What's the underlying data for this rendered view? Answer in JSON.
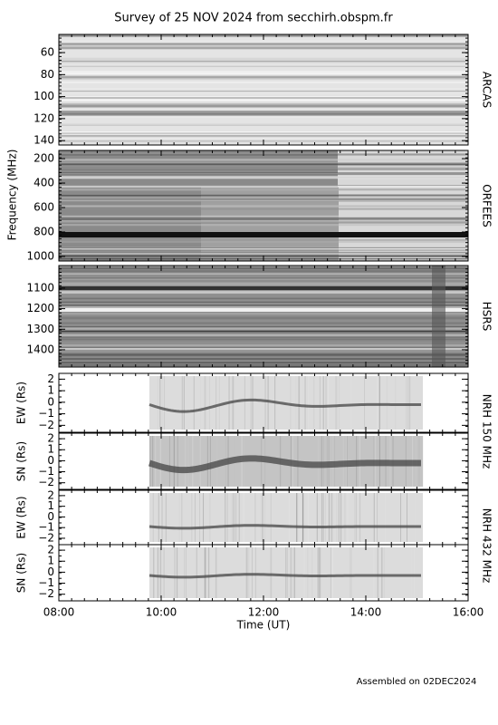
{
  "title": "Survey of 25 NOV 2024 from secchirh.obspm.fr",
  "footer": "Assembled on 02DEC2024",
  "chart_data": [
    {
      "type": "spectrogram",
      "right_label": "ARCAS",
      "ylim": [
        144,
        43.5
      ],
      "yticks": [
        60,
        80,
        100,
        120,
        140
      ]
    },
    {
      "type": "spectrogram",
      "right_label": "ORFEES",
      "ylabel": "Frequency (MHz)",
      "ylim": [
        1037,
        133
      ],
      "yticks": [
        200,
        400,
        600,
        800,
        1000
      ]
    },
    {
      "type": "spectrogram",
      "right_label": "HSRS",
      "ylim": [
        1484,
        990
      ],
      "yticks": [
        1100,
        1200,
        1300,
        1400
      ]
    },
    {
      "type": "heliograph",
      "right_label": "NRH 150 MHz",
      "ylabel": "EW (Rs)",
      "ylim": [
        -2.6,
        2.5
      ],
      "yticks": [
        {
          "value": -2,
          "label": "−2"
        },
        {
          "value": -1,
          "label": "−1"
        },
        0,
        1,
        2
      ]
    },
    {
      "type": "heliograph",
      "ylabel": "SN (Rs)",
      "ylim": [
        -2.6,
        2.5
      ],
      "yticks": [
        {
          "value": -2,
          "label": "−2"
        },
        {
          "value": -1,
          "label": "−1"
        },
        0,
        1,
        2
      ]
    },
    {
      "type": "heliograph",
      "right_label": "NRH 432 MHz",
      "ylabel": "EW (Rs)",
      "ylim": [
        -2.6,
        2.5
      ],
      "yticks": [
        {
          "value": -2,
          "label": "−2"
        },
        {
          "value": -1,
          "label": "−1"
        },
        0,
        1,
        2
      ]
    },
    {
      "type": "heliograph",
      "ylabel": "SN (Rs)",
      "ylim": [
        -2.6,
        2.5
      ],
      "yticks": [
        {
          "value": -2,
          "label": "−2"
        },
        {
          "value": -1,
          "label": "−1"
        },
        0,
        1,
        2
      ],
      "xlabel": "Time (UT)",
      "xlim": [
        8,
        16
      ],
      "xticks": [
        {
          "value": 8,
          "label": "08:00"
        },
        {
          "value": 10,
          "label": "10:00"
        },
        {
          "value": 12,
          "label": "12:00"
        },
        {
          "value": 14,
          "label": "14:00"
        },
        {
          "value": 16,
          "label": "16:00"
        }
      ]
    }
  ]
}
